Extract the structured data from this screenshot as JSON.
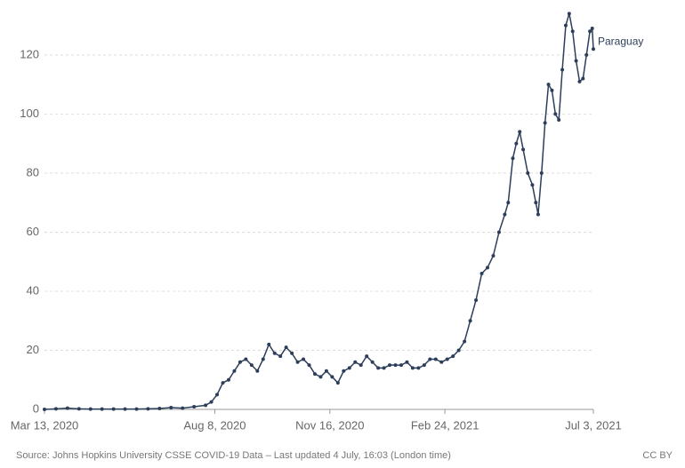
{
  "chart_data": {
    "type": "line",
    "series": [
      {
        "name": "Paraguay",
        "color": "#2d3e5a",
        "values": [
          0,
          0.2,
          0.4,
          0.2,
          0.1,
          0.1,
          0.1,
          0.1,
          0.1,
          0.2,
          0.3,
          0.6,
          0.4,
          0.9,
          1.4,
          2.5,
          5,
          9,
          10,
          13,
          16,
          17,
          15,
          13,
          17,
          22,
          19,
          18,
          21,
          19,
          16,
          17,
          15,
          12,
          11,
          13,
          11,
          9,
          13,
          14,
          16,
          15,
          18,
          16,
          14,
          14,
          15,
          15,
          15,
          16,
          14,
          14,
          15,
          17,
          17,
          16,
          17,
          18,
          20,
          23,
          30,
          37,
          46,
          48,
          52,
          60,
          66,
          70,
          85,
          90,
          94,
          88,
          80,
          76,
          70,
          66,
          80,
          97,
          110,
          108,
          100,
          98,
          115,
          130,
          134,
          128,
          118,
          111,
          112,
          120,
          128,
          129,
          122
        ]
      }
    ],
    "x": [
      "2020-03-13",
      "2020-03-23",
      "2020-04-02",
      "2020-04-12",
      "2020-04-22",
      "2020-05-02",
      "2020-05-12",
      "2020-05-22",
      "2020-06-01",
      "2020-06-11",
      "2020-06-21",
      "2020-07-01",
      "2020-07-11",
      "2020-07-21",
      "2020-07-31",
      "2020-08-05",
      "2020-08-10",
      "2020-08-15",
      "2020-08-20",
      "2020-08-25",
      "2020-08-30",
      "2020-09-04",
      "2020-09-09",
      "2020-09-14",
      "2020-09-19",
      "2020-09-24",
      "2020-09-29",
      "2020-10-04",
      "2020-10-09",
      "2020-10-14",
      "2020-10-19",
      "2020-10-24",
      "2020-10-29",
      "2020-11-03",
      "2020-11-08",
      "2020-11-13",
      "2020-11-18",
      "2020-11-23",
      "2020-11-28",
      "2020-12-03",
      "2020-12-08",
      "2020-12-13",
      "2020-12-18",
      "2020-12-23",
      "2020-12-28",
      "2021-01-02",
      "2021-01-07",
      "2021-01-12",
      "2021-01-17",
      "2021-01-22",
      "2021-01-27",
      "2021-02-01",
      "2021-02-06",
      "2021-02-11",
      "2021-02-16",
      "2021-02-21",
      "2021-02-26",
      "2021-03-03",
      "2021-03-08",
      "2021-03-13",
      "2021-03-18",
      "2021-03-23",
      "2021-03-28",
      "2021-04-02",
      "2021-04-07",
      "2021-04-12",
      "2021-04-17",
      "2021-04-20",
      "2021-04-24",
      "2021-04-27",
      "2021-04-30",
      "2021-05-03",
      "2021-05-07",
      "2021-05-11",
      "2021-05-14",
      "2021-05-16",
      "2021-05-19",
      "2021-05-22",
      "2021-05-25",
      "2021-05-28",
      "2021-05-31",
      "2021-06-03",
      "2021-06-06",
      "2021-06-09",
      "2021-06-12",
      "2021-06-15",
      "2021-06-18",
      "2021-06-21",
      "2021-06-24",
      "2021-06-27",
      "2021-06-30",
      "2021-07-02",
      "2021-07-03"
    ],
    "xlim": [
      "2020-03-13",
      "2021-07-03"
    ],
    "xticks": [
      {
        "value": "2020-03-13",
        "label": "Mar 13, 2020"
      },
      {
        "value": "2020-08-08",
        "label": "Aug 8, 2020"
      },
      {
        "value": "2020-11-16",
        "label": "Nov 16, 2020"
      },
      {
        "value": "2021-02-24",
        "label": "Feb 24, 2021"
      },
      {
        "value": "2021-07-03",
        "label": "Jul 3, 2021"
      }
    ],
    "ylim": [
      0,
      135
    ],
    "yticks": [
      0,
      20,
      40,
      60,
      80,
      100,
      120
    ],
    "grid": true,
    "source": "Source: Johns Hopkins University CSSE COVID-19 Data – Last updated 4 July, 16:03 (London time)",
    "license": "CC BY"
  }
}
